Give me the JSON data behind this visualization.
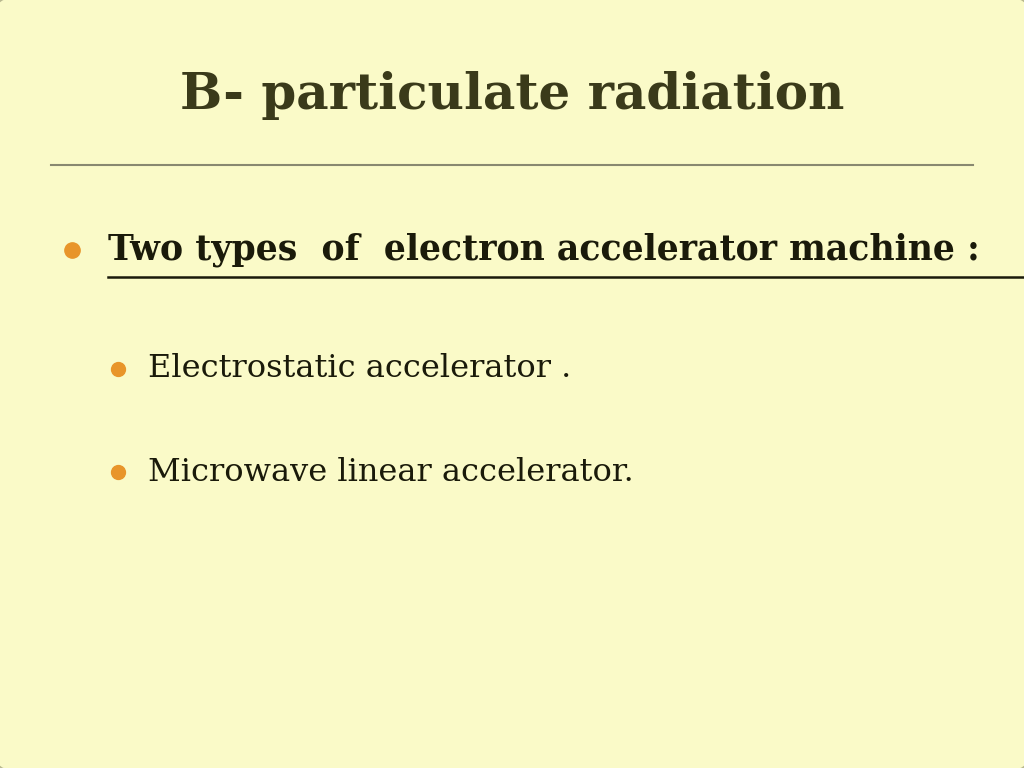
{
  "background_color": "#FAFAC8",
  "title": "B- particulate radiation",
  "title_color": "#3a3a1a",
  "title_fontsize": 36,
  "separator_color": "#888870",
  "bullet_color": "#E8952A",
  "bullet1_text": "Two types  of  electron accelerator machine :",
  "bullet1_color": "#1a1a0a",
  "bullet1_fontsize": 25,
  "sub_bullet1_text": "Electrostatic accelerator .",
  "sub_bullet2_text": "Microwave linear accelerator.",
  "sub_bullet_color": "#1a1a0a",
  "sub_bullet_fontsize": 23,
  "fig_width": 10.24,
  "fig_height": 7.68,
  "dpi": 100
}
